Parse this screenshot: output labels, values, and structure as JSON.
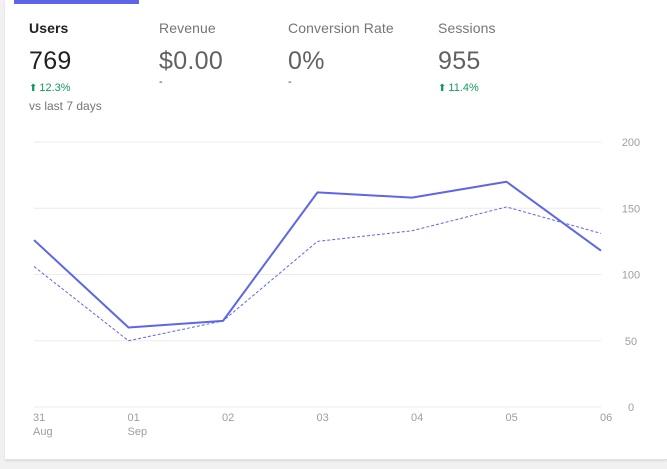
{
  "metrics": [
    {
      "label": "Users",
      "value": "769",
      "change": "12.3%",
      "compare": "vs last 7 days",
      "active": true
    },
    {
      "label": "Revenue",
      "value": "$0.00",
      "dash": "-",
      "active": false
    },
    {
      "label": "Conversion Rate",
      "value": "0%",
      "dash": "-",
      "active": false
    },
    {
      "label": "Sessions",
      "value": "955",
      "change": "11.4%",
      "active": false
    }
  ],
  "colors": {
    "accent": "#5e66e8",
    "positive": "#0f9d58",
    "grid": "#ebebeb"
  },
  "chart_data": {
    "type": "line",
    "x": [
      "31 Aug",
      "01 Sep",
      "02",
      "03",
      "04",
      "05",
      "06"
    ],
    "x_tick_labels": [
      {
        "line1": "31",
        "line2": "Aug"
      },
      {
        "line1": "01",
        "line2": "Sep"
      },
      {
        "line1": "02",
        "line2": ""
      },
      {
        "line1": "03",
        "line2": ""
      },
      {
        "line1": "04",
        "line2": ""
      },
      {
        "line1": "05",
        "line2": ""
      },
      {
        "line1": "06",
        "line2": ""
      }
    ],
    "y_ticks": [
      "0",
      "50",
      "100",
      "150",
      "200"
    ],
    "ylim": [
      0,
      200
    ],
    "grid": true,
    "series": [
      {
        "style": "solid",
        "values": [
          126,
          60,
          65,
          162,
          158,
          170,
          118
        ]
      },
      {
        "style": "dashed",
        "values": [
          106,
          50,
          65,
          125,
          133,
          151,
          131
        ]
      }
    ]
  }
}
